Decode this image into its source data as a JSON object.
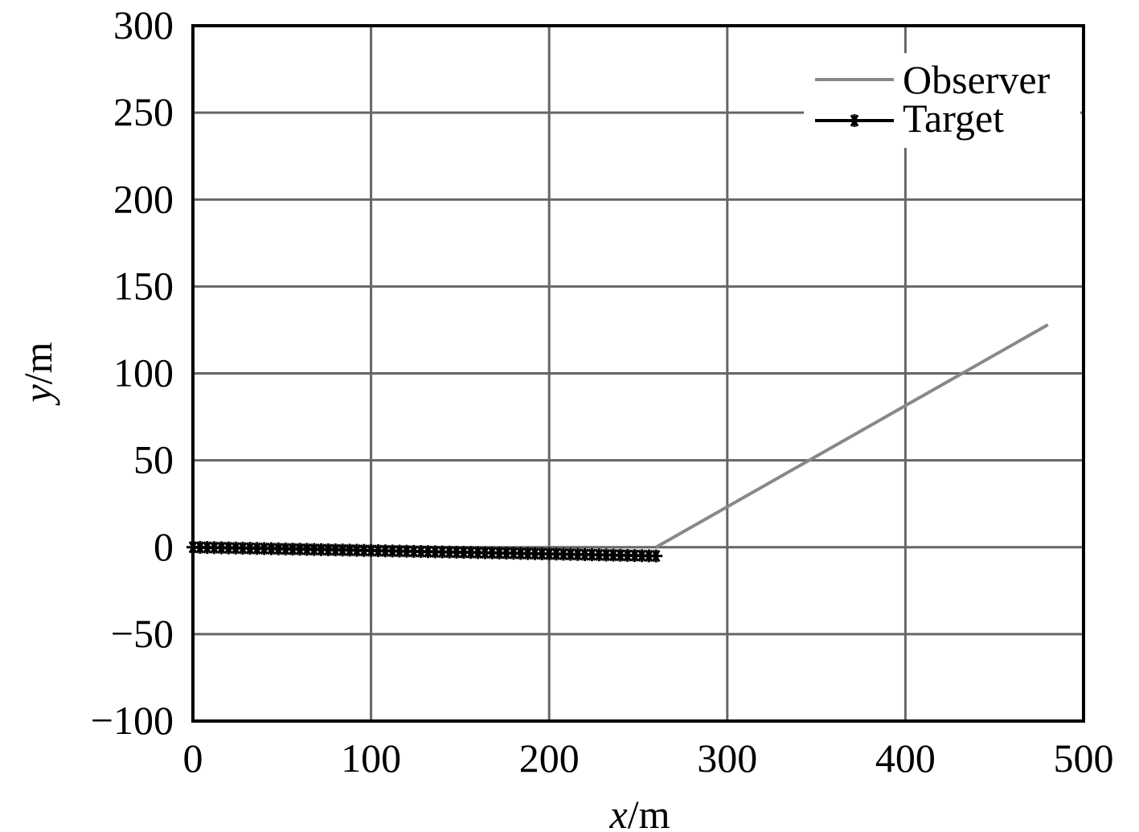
{
  "chart_data": {
    "type": "line",
    "xlabel": {
      "var": "x",
      "unit": "/m"
    },
    "ylabel": {
      "var": "y",
      "unit": "/m"
    },
    "xlim": [
      0,
      500
    ],
    "ylim": [
      -100,
      300
    ],
    "xticks": [
      0,
      100,
      200,
      300,
      400,
      500
    ],
    "yticks": [
      -100,
      -50,
      0,
      50,
      100,
      150,
      200,
      250,
      300
    ],
    "xtick_labels": [
      "0",
      "100",
      "200",
      "300",
      "400",
      "500"
    ],
    "ytick_labels": [
      "−100",
      "−50",
      "0",
      "50",
      "100",
      "150",
      "200",
      "250",
      "300"
    ],
    "grid": true,
    "legend_position": "top-right",
    "series": [
      {
        "name": "Observer",
        "color": "#888888",
        "marker": "none",
        "x": [
          260,
          480
        ],
        "y": [
          0,
          128
        ]
      },
      {
        "name": "Target",
        "color": "#000000",
        "marker": "asterisk",
        "x_start": 0,
        "x_end": 260,
        "x_step": 4,
        "y_start": 0,
        "y_end": -5
      }
    ]
  }
}
